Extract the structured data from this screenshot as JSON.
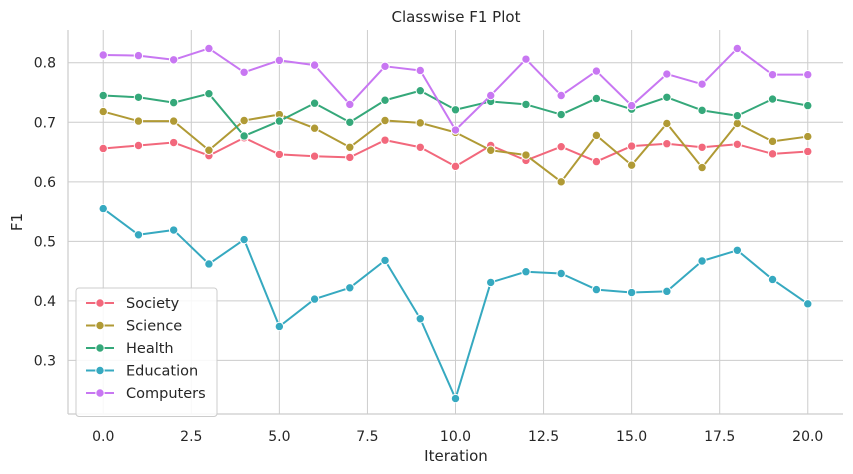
{
  "chart_data": {
    "type": "line",
    "title": "Classwise F1 Plot",
    "xlabel": "Iteration",
    "ylabel": "F1",
    "xlim": [
      -1,
      21
    ],
    "ylim": [
      0.21,
      0.855
    ],
    "xticks": [
      0.0,
      2.5,
      5.0,
      7.5,
      10.0,
      12.5,
      15.0,
      17.5,
      20.0
    ],
    "xtick_labels": [
      "0.0",
      "2.5",
      "5.0",
      "7.5",
      "10.0",
      "12.5",
      "15.0",
      "17.5",
      "20.0"
    ],
    "yticks": [
      0.3,
      0.4,
      0.5,
      0.6,
      0.7,
      0.8
    ],
    "ytick_labels": [
      "0.3",
      "0.4",
      "0.5",
      "0.6",
      "0.7",
      "0.8"
    ],
    "grid": true,
    "legend_position": "lower-left",
    "x": [
      0,
      1,
      2,
      3,
      4,
      5,
      6,
      7,
      8,
      9,
      10,
      11,
      12,
      13,
      14,
      15,
      16,
      17,
      18,
      19,
      20
    ],
    "series": [
      {
        "name": "Society",
        "color": "#f2687c",
        "values": [
          0.656,
          0.661,
          0.666,
          0.644,
          0.674,
          0.646,
          0.643,
          0.641,
          0.67,
          0.658,
          0.626,
          0.661,
          0.636,
          0.659,
          0.634,
          0.66,
          0.664,
          0.658,
          0.663,
          0.647,
          0.651
        ]
      },
      {
        "name": "Science",
        "color": "#b09a35",
        "values": [
          0.718,
          0.702,
          0.702,
          0.653,
          0.703,
          0.713,
          0.69,
          0.658,
          0.703,
          0.699,
          0.683,
          0.653,
          0.645,
          0.6,
          0.678,
          0.628,
          0.698,
          0.624,
          0.698,
          0.668,
          0.676
        ]
      },
      {
        "name": "Health",
        "color": "#35a87a",
        "values": [
          0.745,
          0.742,
          0.733,
          0.748,
          0.677,
          0.702,
          0.732,
          0.7,
          0.737,
          0.753,
          0.721,
          0.735,
          0.73,
          0.713,
          0.74,
          0.722,
          0.742,
          0.72,
          0.711,
          0.739,
          0.728
        ]
      },
      {
        "name": "Education",
        "color": "#36a9c0",
        "values": [
          0.555,
          0.511,
          0.519,
          0.462,
          0.503,
          0.357,
          0.403,
          0.422,
          0.468,
          0.37,
          0.236,
          0.431,
          0.449,
          0.446,
          0.419,
          0.414,
          0.416,
          0.467,
          0.485,
          0.436,
          0.395
        ]
      },
      {
        "name": "Computers",
        "color": "#c877f2",
        "values": [
          0.813,
          0.812,
          0.805,
          0.824,
          0.784,
          0.804,
          0.796,
          0.73,
          0.794,
          0.787,
          0.687,
          0.745,
          0.806,
          0.745,
          0.786,
          0.728,
          0.781,
          0.764,
          0.824,
          0.78,
          0.78
        ]
      }
    ]
  }
}
